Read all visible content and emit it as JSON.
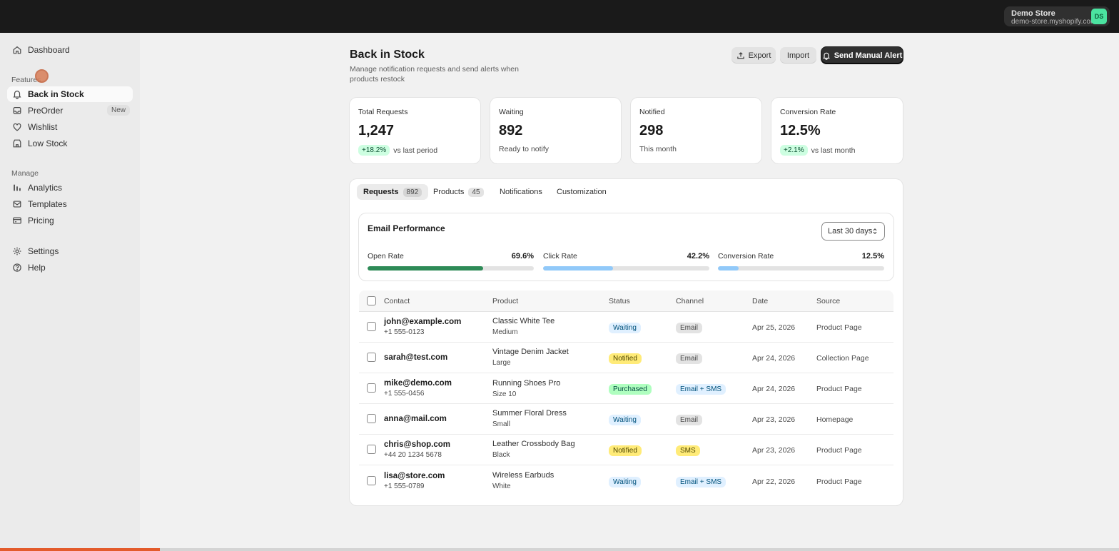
{
  "topbar": {
    "store_name": "Demo Store",
    "store_domain": "demo-store.myshopify.com",
    "avatar_initials": "DS"
  },
  "sidebar": {
    "dashboard": "Dashboard",
    "features_heading": "Features",
    "features": [
      {
        "label": "Back in Stock",
        "icon": "bell-icon",
        "active": true
      },
      {
        "label": "PreOrder",
        "icon": "inbox-icon",
        "badge": "New"
      },
      {
        "label": "Wishlist",
        "icon": "heart-icon"
      },
      {
        "label": "Low Stock",
        "icon": "store-icon"
      }
    ],
    "manage_heading": "Manage",
    "manage": [
      {
        "label": "Analytics",
        "icon": "bar-chart-icon"
      },
      {
        "label": "Templates",
        "icon": "mail-icon"
      },
      {
        "label": "Pricing",
        "icon": "credit-card-icon"
      }
    ],
    "bottom": [
      {
        "label": "Settings",
        "icon": "gear-icon"
      },
      {
        "label": "Help",
        "icon": "help-icon"
      }
    ]
  },
  "header": {
    "title": "Back in Stock",
    "subtitle": "Manage notification requests and send alerts when products restock",
    "export_label": "Export",
    "import_label": "Import",
    "send_label": "Send Manual Alert"
  },
  "stats": [
    {
      "label": "Total Requests",
      "value": "1,247",
      "trend": "+18.2%",
      "foot": "vs last period"
    },
    {
      "label": "Waiting",
      "value": "892",
      "foot": "Ready to notify"
    },
    {
      "label": "Notified",
      "value": "298",
      "foot": "This month"
    },
    {
      "label": "Conversion Rate",
      "value": "12.5%",
      "trend": "+2.1%",
      "foot": "vs last month"
    }
  ],
  "tabs": [
    {
      "label": "Requests",
      "count": "892",
      "active": true
    },
    {
      "label": "Products",
      "count": "45"
    },
    {
      "label": "Notifications"
    },
    {
      "label": "Customization"
    }
  ],
  "performance": {
    "title": "Email Performance",
    "range": "Last 30 days",
    "metrics": [
      {
        "label": "Open Rate",
        "value": "69.6%",
        "fraction": 0.696,
        "color": "#2e8b57"
      },
      {
        "label": "Click Rate",
        "value": "42.2%",
        "fraction": 0.422,
        "color": "#91c9f9"
      },
      {
        "label": "Conversion Rate",
        "value": "12.5%",
        "fraction": 0.125,
        "color": "#91c9f9"
      }
    ]
  },
  "table": {
    "columns": [
      "Contact",
      "Product",
      "Status",
      "Channel",
      "Date",
      "Source"
    ],
    "rows": [
      {
        "email": "john@example.com",
        "phone": "+1 555-0123",
        "product": "Classic White Tee",
        "variant": "Medium",
        "status": "Waiting",
        "channel": "Email",
        "date": "Apr 25, 2026",
        "source": "Product Page"
      },
      {
        "email": "sarah@test.com",
        "phone": "",
        "product": "Vintage Denim Jacket",
        "variant": "Large",
        "status": "Notified",
        "channel": "Email",
        "date": "Apr 24, 2026",
        "source": "Collection Page"
      },
      {
        "email": "mike@demo.com",
        "phone": "+1 555-0456",
        "product": "Running Shoes Pro",
        "variant": "Size 10",
        "status": "Purchased",
        "channel": "Email + SMS",
        "date": "Apr 24, 2026",
        "source": "Product Page"
      },
      {
        "email": "anna@mail.com",
        "phone": "",
        "product": "Summer Floral Dress",
        "variant": "Small",
        "status": "Waiting",
        "channel": "Email",
        "date": "Apr 23, 2026",
        "source": "Homepage"
      },
      {
        "email": "chris@shop.com",
        "phone": "+44 20 1234 5678",
        "product": "Leather Crossbody Bag",
        "variant": "Black",
        "status": "Notified",
        "channel": "SMS",
        "date": "Apr 23, 2026",
        "source": "Product Page"
      },
      {
        "email": "lisa@store.com",
        "phone": "+1 555-0789",
        "product": "Wireless Earbuds",
        "variant": "White",
        "status": "Waiting",
        "channel": "Email + SMS",
        "date": "Apr 22, 2026",
        "source": "Product Page"
      }
    ]
  },
  "page_load_progress": 0.143
}
